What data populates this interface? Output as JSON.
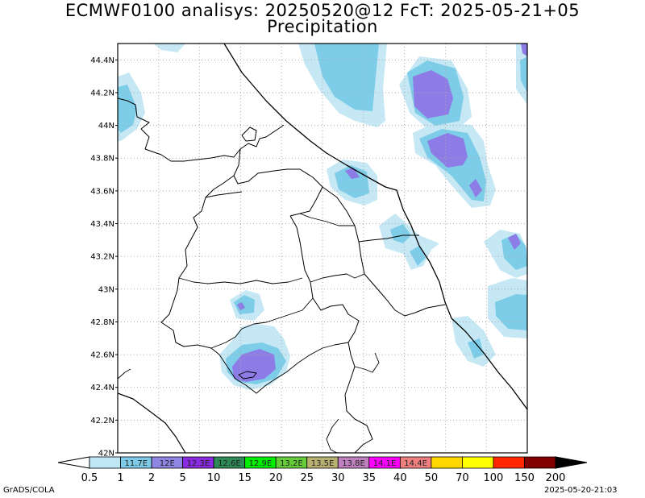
{
  "header": {
    "line1": "ECMWF0100 analisys: 20250520@12 FcT: 2025-05-21+05",
    "line2": "Precipitation"
  },
  "map": {
    "lat_range": [
      42.0,
      44.5
    ],
    "lat_labels": [
      "44.4N",
      "44.2N",
      "44N",
      "43.8N",
      "43.6N",
      "43.4N",
      "43.2N",
      "43N",
      "42.8N",
      "42.6N",
      "42.4N",
      "42.2N",
      "42N"
    ],
    "lat_values": [
      44.4,
      44.2,
      44.0,
      43.8,
      43.6,
      43.4,
      43.2,
      43.0,
      42.8,
      42.6,
      42.4,
      42.2,
      42.0
    ],
    "grid": true,
    "contours": [
      {
        "level": 1,
        "color": "#c6e8f4"
      },
      {
        "level": 2,
        "color": "#7dcce8"
      },
      {
        "level": 5,
        "color": "#8d7be6"
      }
    ]
  },
  "colorbar": {
    "labels": [
      "0.5",
      "1",
      "2",
      "5",
      "10",
      "15",
      "20",
      "25",
      "30",
      "35",
      "40",
      "50",
      "70",
      "100",
      "150",
      "200"
    ],
    "colors": [
      "#bfe6f4",
      "#7dcbe8",
      "#8f85e3",
      "#8a2be2",
      "#2e8b57",
      "#00ee00",
      "#66cd3a",
      "#b8b070",
      "#c080c0",
      "#ff00ff",
      "#f08080",
      "#ffd700",
      "#ffff00",
      "#ff2800",
      "#800000"
    ],
    "swatch_texts": [
      "",
      "11.7E",
      "12E",
      "12.3E",
      "12.6E",
      "12.9E",
      "13.2E",
      "13.5E",
      "13.8E",
      "14.1E",
      "14.4E",
      "",
      "",
      "",
      ""
    ],
    "under_color": "#ffffff",
    "over_color": "#000000"
  },
  "footer": {
    "left": "GrADS/COLA",
    "right": "2025-05-20-21:03"
  }
}
